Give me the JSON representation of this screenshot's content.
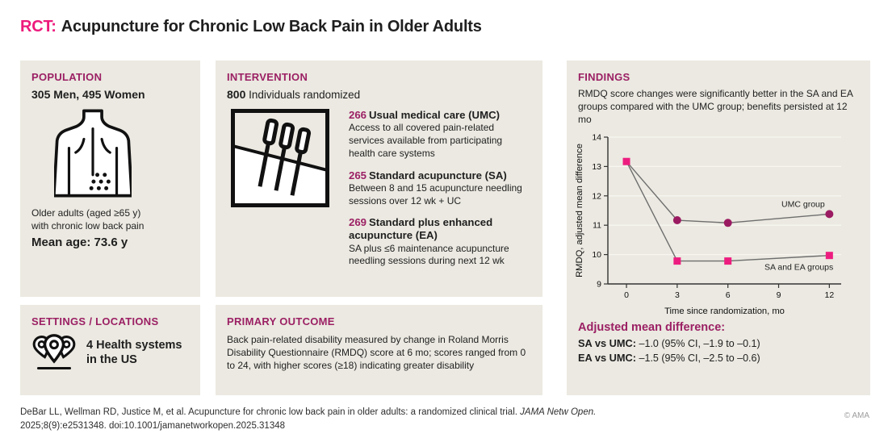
{
  "title": {
    "tag": "RCT:",
    "text": "Acupuncture for Chronic Low Back Pain in Older Adults"
  },
  "population": {
    "header": "POPULATION",
    "stat": "305 Men, 495 Women",
    "icon": "back-pain-icon",
    "desc_line1": "Older adults (aged ≥65 y)",
    "desc_line2": "with chronic low back pain",
    "mean_age": "Mean age: 73.6 y"
  },
  "intervention": {
    "header": "INTERVENTION",
    "n": "800",
    "n_label": " Individuals randomized",
    "icon": "acupuncture-needles-icon",
    "arms": [
      {
        "n": "266",
        "name": "Usual medical care (UMC)",
        "desc": "Access to all covered pain-related services available from participating health care systems"
      },
      {
        "n": "265",
        "name": "Standard acupuncture (SA)",
        "desc": "Between 8 and 15 acupuncture needling sessions over 12 wk + UC"
      },
      {
        "n": "269",
        "name": "Standard plus enhanced acupuncture (EA)",
        "desc": "SA plus ≤6 maintenance acupuncture needling sessions during next 12 wk"
      }
    ]
  },
  "settings": {
    "header": "SETTINGS / LOCATIONS",
    "icon": "map-pins-icon",
    "line1": "4 Health systems",
    "line2": "in the US"
  },
  "primary_outcome": {
    "header": "PRIMARY OUTCOME",
    "text": "Back pain-related disability measured by change in Roland Morris Disability Questionnaire (RMDQ) score at 6 mo; scores ranged from 0 to 24, with higher scores (≥18) indicating greater disability"
  },
  "findings": {
    "header": "FINDINGS",
    "summary": "RMDQ score changes were significantly better in the SA and EA groups compared with the UMC group; benefits persisted at 12 mo",
    "adjusted": {
      "header": "Adjusted mean difference:",
      "rows": [
        {
          "label": "SA vs UMC:",
          "value": " –1.0 (95% CI, –1.9 to –0.1)"
        },
        {
          "label": "EA vs UMC:",
          "value": " –1.5 (95% CI, –2.5 to –0.6)"
        }
      ]
    }
  },
  "chart_data": {
    "type": "line",
    "xlabel": "Time since randomization, mo",
    "ylabel": "RMDQ, adjusted mean difference",
    "xlim": [
      -1.1,
      12.7
    ],
    "ylim": [
      9,
      14
    ],
    "x_ticks": [
      0,
      3,
      6,
      9,
      12
    ],
    "y_ticks": [
      9,
      10,
      11,
      12,
      13,
      14
    ],
    "grid": "horizontal",
    "line_color": "#6e6e6e",
    "series": [
      {
        "name": "UMC group",
        "marker": "circle",
        "marker_color": "#9b1b62",
        "x": [
          0,
          3,
          6,
          12
        ],
        "y": [
          13.17,
          11.17,
          11.08,
          11.38
        ],
        "marker_flags": [
          false,
          true,
          true,
          true
        ]
      },
      {
        "name": "SA and EA groups",
        "marker": "square",
        "marker_color": "#ed1d80",
        "x": [
          0,
          3,
          6,
          12
        ],
        "y": [
          13.17,
          9.78,
          9.78,
          9.97
        ],
        "marker_flags": [
          true,
          true,
          true,
          true
        ]
      }
    ],
    "annotations": [
      {
        "text": "UMC group",
        "x": 10.45,
        "y": 11.72
      },
      {
        "text": "SA and EA groups",
        "x": 10.2,
        "y": 9.58
      }
    ]
  },
  "footer": {
    "cite_pre": "DeBar LL, Wellman RD, Justice M, et al. Acupuncture for chronic low back pain in older adults: a randomized clinical trial. ",
    "cite_italic": "JAMA Netw Open.",
    "cite_post": " 2025;8(9):e2531348. doi:10.1001/jamanetworkopen.2025.31348",
    "copyright": "© AMA"
  }
}
